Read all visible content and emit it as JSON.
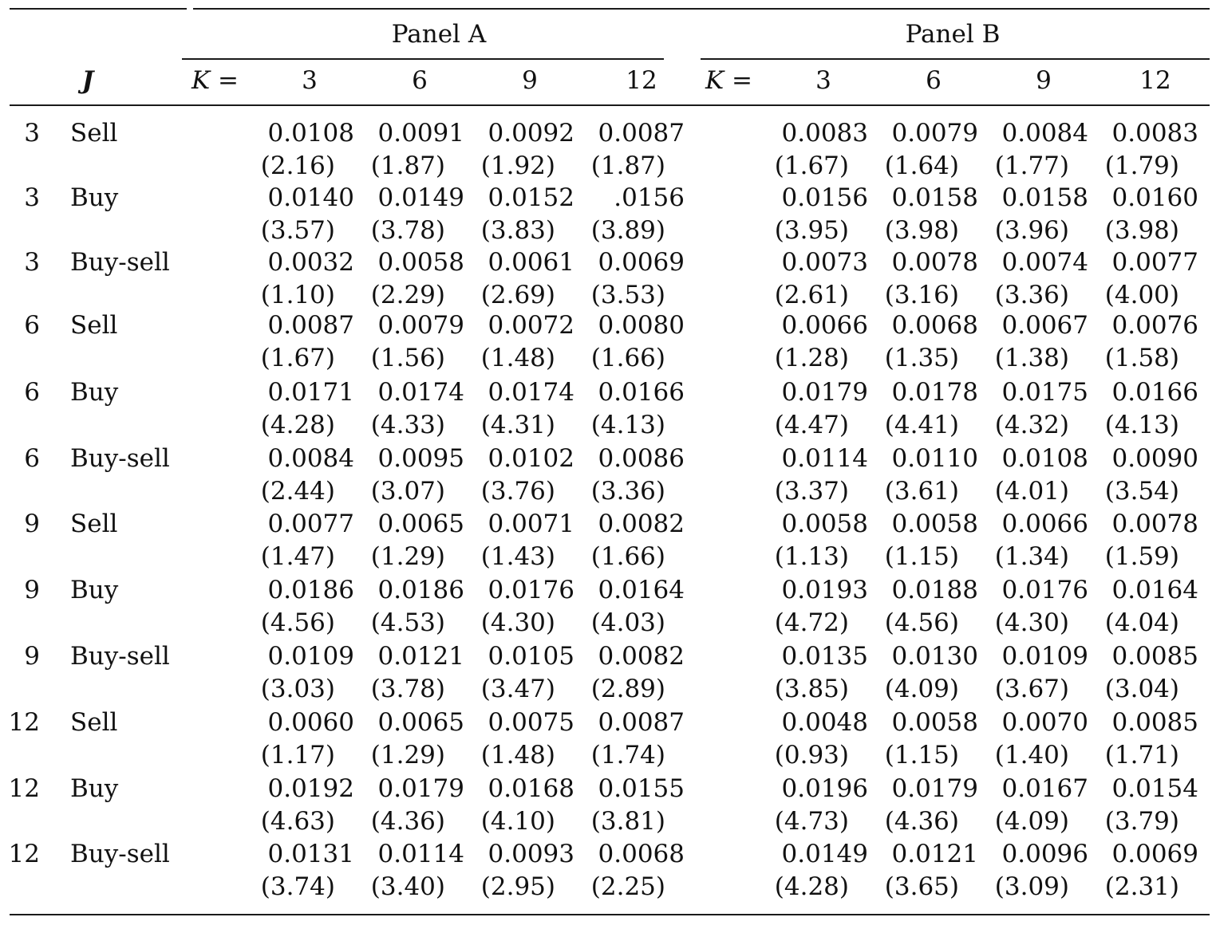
{
  "header": {
    "panel_a": "Panel A",
    "panel_b": "Panel B",
    "j_label": "J",
    "k_label": "K =",
    "k_values": [
      "3",
      "6",
      "9",
      "12"
    ]
  },
  "rows": [
    {
      "j": "3",
      "type": "Sell",
      "a": [
        "0.0108",
        "0.0091",
        "0.0092",
        "0.0087"
      ],
      "a_t": [
        "(2.16)",
        "(1.87)",
        "(1.92)",
        "(1.87)"
      ],
      "b": [
        "0.0083",
        "0.0079",
        "0.0084",
        "0.0083"
      ],
      "b_t": [
        "(1.67)",
        "(1.64)",
        "(1.77)",
        "(1.79)"
      ]
    },
    {
      "j": "3",
      "type": "Buy",
      "a": [
        "0.0140",
        "0.0149",
        "0.0152",
        ".0156"
      ],
      "a_t": [
        "(3.57)",
        "(3.78)",
        "(3.83)",
        "(3.89)"
      ],
      "b": [
        "0.0156",
        "0.0158",
        "0.0158",
        "0.0160"
      ],
      "b_t": [
        "(3.95)",
        "(3.98)",
        "(3.96)",
        "(3.98)"
      ]
    },
    {
      "j": "3",
      "type": "Buy-sell",
      "a": [
        "0.0032",
        "0.0058",
        "0.0061",
        "0.0069"
      ],
      "a_t": [
        "(1.10)",
        "(2.29)",
        "(2.69)",
        "(3.53)"
      ],
      "b": [
        "0.0073",
        "0.0078",
        "0.0074",
        "0.0077"
      ],
      "b_t": [
        "(2.61)",
        "(3.16)",
        "(3.36)",
        "(4.00)"
      ]
    },
    {
      "j": "6",
      "type": "Sell",
      "a": [
        "0.0087",
        "0.0079",
        "0.0072",
        "0.0080"
      ],
      "a_t": [
        "(1.67)",
        "(1.56)",
        "(1.48)",
        "(1.66)"
      ],
      "b": [
        "0.0066",
        "0.0068",
        "0.0067",
        "0.0076"
      ],
      "b_t": [
        "(1.28)",
        "(1.35)",
        "(1.38)",
        "(1.58)"
      ]
    },
    {
      "j": "6",
      "type": "Buy",
      "a": [
        "0.0171",
        "0.0174",
        "0.0174",
        "0.0166"
      ],
      "a_t": [
        "(4.28)",
        "(4.33)",
        "(4.31)",
        "(4.13)"
      ],
      "b": [
        "0.0179",
        "0.0178",
        "0.0175",
        "0.0166"
      ],
      "b_t": [
        "(4.47)",
        "(4.41)",
        "(4.32)",
        "(4.13)"
      ]
    },
    {
      "j": "6",
      "type": "Buy-sell",
      "a": [
        "0.0084",
        "0.0095",
        "0.0102",
        "0.0086"
      ],
      "a_t": [
        "(2.44)",
        "(3.07)",
        "(3.76)",
        "(3.36)"
      ],
      "b": [
        "0.0114",
        "0.0110",
        "0.0108",
        "0.0090"
      ],
      "b_t": [
        "(3.37)",
        "(3.61)",
        "(4.01)",
        "(3.54)"
      ]
    },
    {
      "j": "9",
      "type": "Sell",
      "a": [
        "0.0077",
        "0.0065",
        "0.0071",
        "0.0082"
      ],
      "a_t": [
        "(1.47)",
        "(1.29)",
        "(1.43)",
        "(1.66)"
      ],
      "b": [
        "0.0058",
        "0.0058",
        "0.0066",
        "0.0078"
      ],
      "b_t": [
        "(1.13)",
        "(1.15)",
        "(1.34)",
        "(1.59)"
      ]
    },
    {
      "j": "9",
      "type": "Buy",
      "a": [
        "0.0186",
        "0.0186",
        "0.0176",
        "0.0164"
      ],
      "a_t": [
        "(4.56)",
        "(4.53)",
        "(4.30)",
        "(4.03)"
      ],
      "b": [
        "0.0193",
        "0.0188",
        "0.0176",
        "0.0164"
      ],
      "b_t": [
        "(4.72)",
        "(4.56)",
        "(4.30)",
        "(4.04)"
      ]
    },
    {
      "j": "9",
      "type": "Buy-sell",
      "a": [
        "0.0109",
        "0.0121",
        "0.0105",
        "0.0082"
      ],
      "a_t": [
        "(3.03)",
        "(3.78)",
        "(3.47)",
        "(2.89)"
      ],
      "b": [
        "0.0135",
        "0.0130",
        "0.0109",
        "0.0085"
      ],
      "b_t": [
        "(3.85)",
        "(4.09)",
        "(3.67)",
        "(3.04)"
      ]
    },
    {
      "j": "12",
      "type": "Sell",
      "a": [
        "0.0060",
        "0.0065",
        "0.0075",
        "0.0087"
      ],
      "a_t": [
        "(1.17)",
        "(1.29)",
        "(1.48)",
        "(1.74)"
      ],
      "b": [
        "0.0048",
        "0.0058",
        "0.0070",
        "0.0085"
      ],
      "b_t": [
        "(0.93)",
        "(1.15)",
        "(1.40)",
        "(1.71)"
      ]
    },
    {
      "j": "12",
      "type": "Buy",
      "a": [
        "0.0192",
        "0.0179",
        "0.0168",
        "0.0155"
      ],
      "a_t": [
        "(4.63)",
        "(4.36)",
        "(4.10)",
        "(3.81)"
      ],
      "b": [
        "0.0196",
        "0.0179",
        "0.0167",
        "0.0154"
      ],
      "b_t": [
        "(4.73)",
        "(4.36)",
        "(4.09)",
        "(3.79)"
      ]
    },
    {
      "j": "12",
      "type": "Buy-sell",
      "a": [
        "0.0131",
        "0.0114",
        "0.0093",
        "0.0068"
      ],
      "a_t": [
        "(3.74)",
        "(3.40)",
        "(2.95)",
        "(2.25)"
      ],
      "b": [
        "0.0149",
        "0.0121",
        "0.0096",
        "0.0069"
      ],
      "b_t": [
        "(4.28)",
        "(3.65)",
        "(3.09)",
        "(2.31)"
      ]
    }
  ]
}
